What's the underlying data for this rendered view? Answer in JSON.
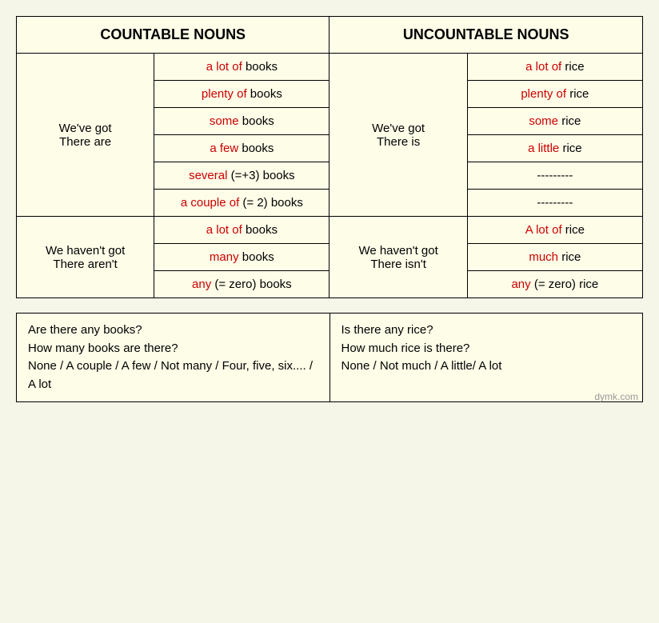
{
  "headers": {
    "countable": "COUNTABLE NOUNS",
    "uncountable": "UNCOUNTABLE NOUNS"
  },
  "colors": {
    "quantifier": "#cc0000",
    "noun": "#000000",
    "background": "#fefde8",
    "border": "#000000"
  },
  "section1": {
    "left_c": "We've got\nThere are",
    "left_u": "We've got\nThere is",
    "rows": [
      {
        "cq": "a lot of",
        "cn": " books",
        "uq": "a lot of",
        "un": " rice"
      },
      {
        "cq": "plenty of",
        "cn": " books",
        "uq": "plenty of",
        "un": " rice"
      },
      {
        "cq": "some",
        "cn": " books",
        "uq": "some",
        "un": " rice"
      },
      {
        "cq": "a few",
        "cn": " books",
        "uq": "a little",
        "un": " rice"
      },
      {
        "cq": "several",
        "cn": " (=+3) books",
        "uq": "",
        "un": "---------"
      },
      {
        "cq": "a couple of",
        "cn": " (= 2) books",
        "uq": "",
        "un": "---------"
      }
    ]
  },
  "section2": {
    "left_c": "We haven't got\nThere aren't",
    "left_u": "We haven't got\nThere isn't",
    "rows": [
      {
        "cq": "a lot of",
        "cn": " books",
        "uq": "A lot of",
        "un": " rice"
      },
      {
        "cq": "many",
        "cn": " books",
        "uq": "much",
        "un": " rice"
      },
      {
        "cq": "any",
        "cn": " (= zero) books",
        "uq": "any",
        "un": " (= zero) rice"
      }
    ]
  },
  "bottom": {
    "left": "Are there any books?\nHow many books are there?\nNone / A couple / A few / Not many / Four, five, six.... / A lot",
    "right": "Is there any rice?\nHow much rice is there?\nNone / Not much / A little/ A lot"
  },
  "watermark": "dymk.com"
}
